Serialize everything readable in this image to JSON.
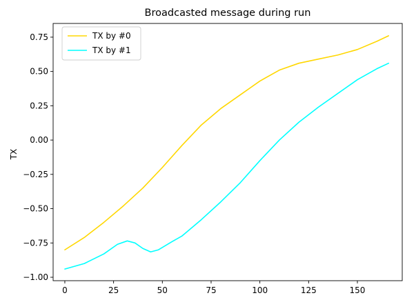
{
  "chart_data": {
    "type": "line",
    "title": "Broadcasted message during run",
    "xlabel": "",
    "ylabel": "TX",
    "xlim": [
      -6,
      173
    ],
    "ylim": [
      -1.025,
      0.85
    ],
    "xticks": [
      0,
      25,
      50,
      75,
      100,
      125,
      150
    ],
    "yticks": [
      -1.0,
      -0.75,
      -0.5,
      -0.25,
      0.0,
      0.25,
      0.5,
      0.75
    ],
    "ytick_labels": [
      "−1.00",
      "−0.75",
      "−0.50",
      "−0.25",
      "0.00",
      "0.25",
      "0.50",
      "0.75"
    ],
    "grid": false,
    "legend_position": "top-left",
    "series": [
      {
        "name": "TX by #0",
        "color": "#ffd700",
        "x": [
          0,
          10,
          20,
          30,
          40,
          50,
          60,
          70,
          80,
          90,
          100,
          110,
          120,
          130,
          140,
          150,
          160,
          166
        ],
        "y": [
          -0.8,
          -0.71,
          -0.6,
          -0.48,
          -0.35,
          -0.2,
          -0.04,
          0.11,
          0.23,
          0.33,
          0.43,
          0.51,
          0.56,
          0.59,
          0.62,
          0.66,
          0.72,
          0.76
        ]
      },
      {
        "name": "TX by #1",
        "color": "#00ffff",
        "x": [
          0,
          10,
          20,
          27,
          32,
          36,
          40,
          44,
          48,
          55,
          60,
          70,
          80,
          90,
          100,
          110,
          120,
          130,
          140,
          150,
          160,
          166
        ],
        "y": [
          -0.94,
          -0.9,
          -0.83,
          -0.76,
          -0.735,
          -0.75,
          -0.79,
          -0.815,
          -0.8,
          -0.74,
          -0.7,
          -0.58,
          -0.45,
          -0.31,
          -0.15,
          0.0,
          0.13,
          0.24,
          0.34,
          0.44,
          0.52,
          0.56
        ]
      }
    ]
  }
}
